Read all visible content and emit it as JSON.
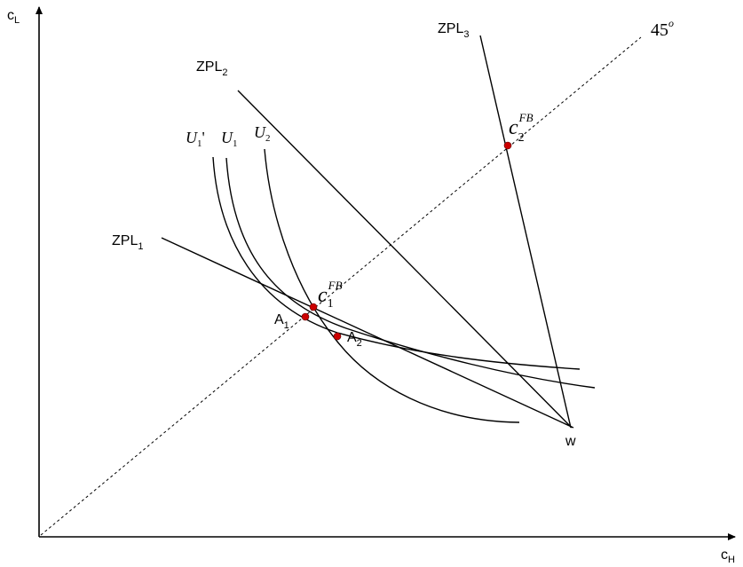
{
  "axes": {
    "y_label": "c",
    "y_label_sub": "L",
    "x_label": "c",
    "x_label_sub": "H"
  },
  "lines": {
    "diagonal_label": "45",
    "diagonal_label_sup": "o",
    "zpl1": {
      "base": "ZPL",
      "sub": "1"
    },
    "zpl2": {
      "base": "ZPL",
      "sub": "2"
    },
    "zpl3": {
      "base": "ZPL",
      "sub": "3"
    }
  },
  "curves": {
    "u1_prime": {
      "base": "U",
      "sub": "1",
      "suffix": "'"
    },
    "u1": {
      "base": "U",
      "sub": "1"
    },
    "u2": {
      "base": "U",
      "sub": "2"
    }
  },
  "points": {
    "w": "w",
    "a1": {
      "base": "A",
      "sub": "1"
    },
    "a2": {
      "base": "A",
      "sub": "2"
    },
    "c1fb": {
      "base": "c",
      "sub": "1",
      "sup": "FB"
    },
    "c2fb": {
      "base": "c",
      "sub": "2",
      "sup": "FB"
    }
  },
  "colors": {
    "stroke": "#000000",
    "point": "#cc0000"
  }
}
